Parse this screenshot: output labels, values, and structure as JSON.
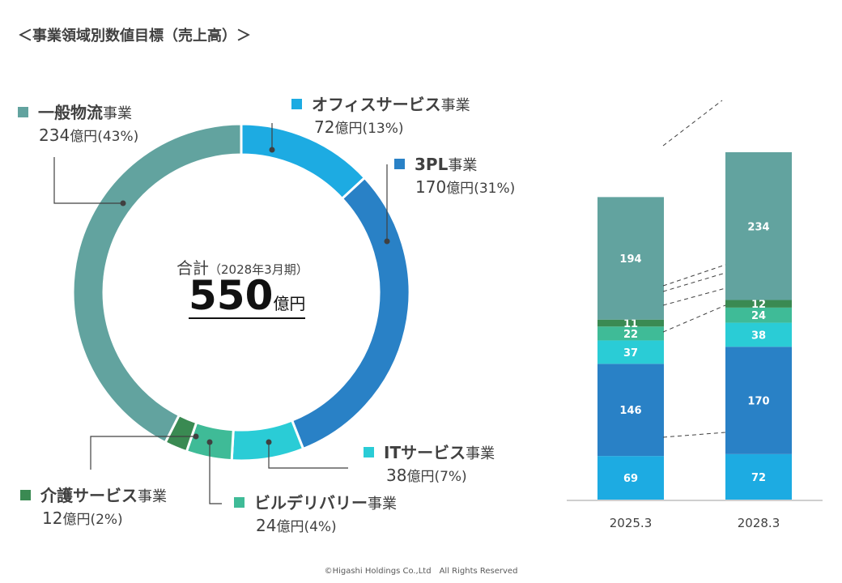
{
  "title": "＜事業領域別数値目標（売上高）＞",
  "total": {
    "caption": "合計",
    "period": "（2028年3月期）",
    "value": "550",
    "unit": "億円"
  },
  "labels": [
    {
      "key": "butsuryu",
      "name": "一般物流",
      "suffix": "事業",
      "value": "234",
      "unit": "億円",
      "pct": "(43%)",
      "color": "#62A39F"
    },
    {
      "key": "office",
      "name": "オフィスサービス",
      "suffix": "事業",
      "value": "72",
      "unit": "億円",
      "pct": "(13%)",
      "color": "#1DABE2"
    },
    {
      "key": "threepl",
      "name": "3PL",
      "suffix": "事業",
      "value": "170",
      "unit": "億円",
      "pct": "(31%)",
      "color": "#2981C6"
    },
    {
      "key": "it",
      "name": "ITサービス",
      "suffix": "事業",
      "value": "38",
      "unit": "億円",
      "pct": "(7%)",
      "color": "#2ACCD6"
    },
    {
      "key": "biru",
      "name": "ビルデリバリー",
      "suffix": "事業",
      "value": "24",
      "unit": "億円",
      "pct": "(4%)",
      "color": "#3FBB97"
    },
    {
      "key": "kaigo",
      "name": "介護サービス",
      "suffix": "事業",
      "value": "12",
      "unit": "億円",
      "pct": "(2%)",
      "color": "#3A8A52"
    }
  ],
  "footer": "©Higashi Holdings Co.,Ltd　All Rights Reserved",
  "chart_data": [
    {
      "type": "pie",
      "donut": true,
      "categories": [
        "オフィスサービス事業",
        "3PL事業",
        "ITサービス事業",
        "ビルデリバリー事業",
        "介護サービス事業",
        "一般物流事業"
      ],
      "values": [
        72,
        170,
        38,
        24,
        12,
        234
      ],
      "colors": [
        "#1DABE2",
        "#2981C6",
        "#2ACCD6",
        "#3FBB97",
        "#3A8A52",
        "#62A39F"
      ]
    },
    {
      "type": "bar",
      "stacked": true,
      "categories": [
        "2025.3",
        "2028.3"
      ],
      "series": [
        {
          "key": "office",
          "values": [
            69,
            72
          ],
          "color": "#1DABE2"
        },
        {
          "key": "threepl",
          "values": [
            146,
            170
          ],
          "color": "#2981C6"
        },
        {
          "key": "it",
          "values": [
            37,
            38
          ],
          "color": "#2ACCD6"
        },
        {
          "key": "biru",
          "values": [
            22,
            24
          ],
          "color": "#3FBB97"
        },
        {
          "key": "kaigo",
          "values": [
            11,
            12
          ],
          "color": "#3A8A52"
        },
        {
          "key": "butsuryu",
          "values": [
            194,
            234
          ],
          "color": "#62A39F"
        }
      ]
    }
  ]
}
